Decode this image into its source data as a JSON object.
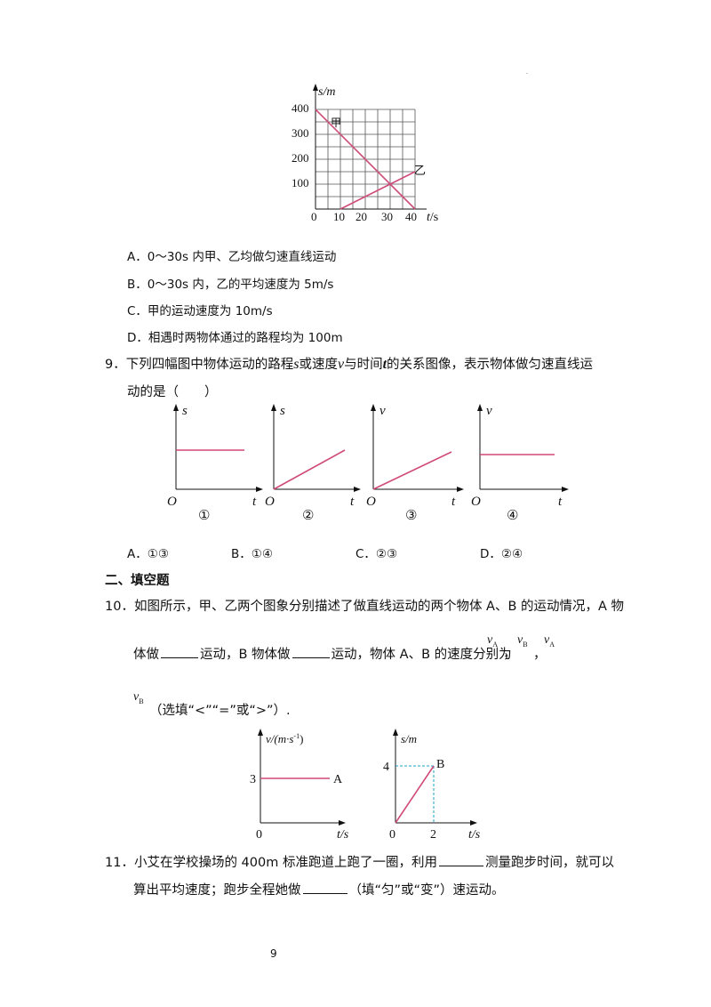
{
  "q8": {
    "chart": {
      "y_axis_label": "s/m",
      "x_axis_label_t": "t",
      "x_axis_label_unit": "/s",
      "y_ticks": [
        "400",
        "300",
        "200",
        "100"
      ],
      "x_ticks": [
        "0",
        "10",
        "20",
        "30",
        "40"
      ],
      "line_jia_label": "甲",
      "line_yi_label": "乙"
    },
    "chart_data": {
      "type": "line",
      "xlabel": "t/s",
      "ylabel": "s/m",
      "xlim": [
        0,
        40
      ],
      "ylim": [
        0,
        400
      ],
      "grid": true,
      "series": [
        {
          "name": "甲",
          "x": [
            0,
            40
          ],
          "y": [
            400,
            0
          ],
          "color": "#d04a7a"
        },
        {
          "name": "乙",
          "x": [
            10,
            40
          ],
          "y": [
            0,
            150
          ],
          "color": "#d04a7a"
        }
      ]
    },
    "options": [
      "A．0～30s 内甲、乙均做匀速直线运动",
      "B．0～30s 内，乙的平均速度为 5m/s",
      "C．甲的运动速度为 10m/s",
      "D．相遇时两物体通过的路程均为 100m"
    ]
  },
  "q9": {
    "line1_pre": "9．下列四幅图中物体运动的路程",
    "s": "s",
    "or_speed": "或速度",
    "v": "v",
    "with_time": "与时间",
    "t": "t",
    "line1_post": "的关系图像，表示物体做匀速直线运",
    "line2": "动的是（　　）",
    "graphs": [
      {
        "y_label": "s",
        "x_label": "t",
        "origin": "O",
        "number": "①"
      },
      {
        "y_label": "s",
        "x_label": "t",
        "origin": "O",
        "number": "②"
      },
      {
        "y_label": "v",
        "x_label": "t",
        "origin": "O",
        "number": "③"
      },
      {
        "y_label": "v",
        "x_label": "t",
        "origin": "O",
        "number": "④"
      }
    ],
    "options": [
      "A．①③",
      "B．①④",
      "C．②③",
      "D．②④"
    ]
  },
  "section2": {
    "title": "二、填空题"
  },
  "q10": {
    "line1": "10．如图所示，甲、乙两个图象分别描述了做直线运动的两个物体 A、B 的运动情况，A 物",
    "line2_a": "体做",
    "line2_b": "运动，B 物体做",
    "line2_c": "运动，物体 A、B 的速度分别为",
    "vA": "v",
    "subA": "A",
    "vB": "v",
    "subB": "B",
    "comma": "，",
    "line3_post": "（选填“<”“=”或“>”）.",
    "graphA": {
      "y_label": "v/(m·s",
      "y_sup": "-1",
      "y_close": ")",
      "y_tick": "3",
      "line_label": "A",
      "origin": "0",
      "x_label": "t/s"
    },
    "graphB": {
      "y_label": "s/m",
      "y_tick": "4",
      "point_label": "B",
      "origin": "0",
      "x_tick": "2",
      "x_label": "t/s"
    }
  },
  "q11": {
    "line1_a": "11．小艾在学校操场的 400m 标准跑道上跑了一圈，利用",
    "line1_b": "测量跑步时间，就可以",
    "line2_a": "算出平均速度；跑步全程她做",
    "line2_b": "（填“匀”或“变”）速运动。"
  },
  "page_number": "9"
}
